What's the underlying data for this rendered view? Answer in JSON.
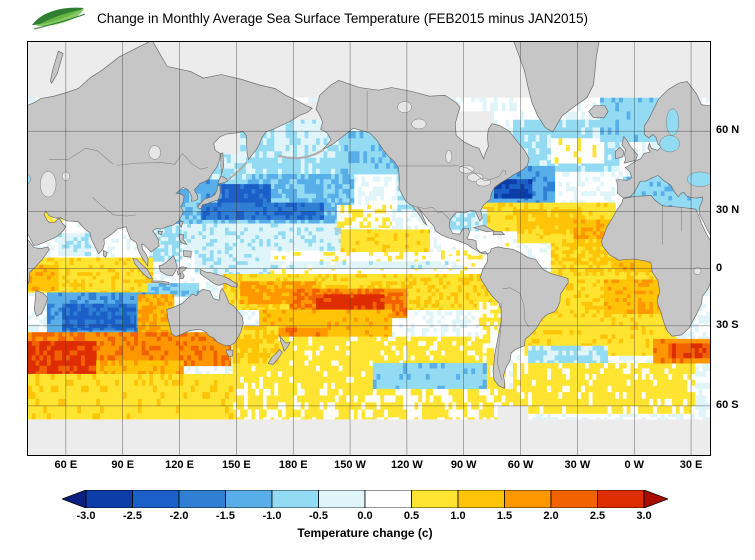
{
  "header": {
    "title": "Change in Monthly Average Sea Surface Temperature (FEB2015 minus JAN2015)",
    "logo_name": "green-leaf-logo"
  },
  "axes": {
    "lon": [
      {
        "v": 60,
        "label": "60 E"
      },
      {
        "v": 90,
        "label": "90 E"
      },
      {
        "v": 120,
        "label": "120 E"
      },
      {
        "v": 150,
        "label": "150 E"
      },
      {
        "v": 180,
        "label": "180 E"
      },
      {
        "v": 210,
        "label": "150 W"
      },
      {
        "v": 240,
        "label": "120 W"
      },
      {
        "v": 270,
        "label": "90 W"
      },
      {
        "v": 300,
        "label": "60 W"
      },
      {
        "v": 330,
        "label": "30 W"
      },
      {
        "v": 360,
        "label": "0 W"
      },
      {
        "v": 390,
        "label": "30 E"
      }
    ],
    "lat": [
      {
        "v": 60,
        "label": "60 N"
      },
      {
        "v": 30,
        "label": "30 N"
      },
      {
        "v": 0,
        "label": "0"
      },
      {
        "v": -30,
        "label": "30 S"
      },
      {
        "v": -60,
        "label": "60 S"
      }
    ]
  },
  "colorbar": {
    "tick_labels": [
      "-3.0",
      "-2.5",
      "-2.0",
      "-1.5",
      "-1.0",
      "-0.5",
      "0.0",
      "0.5",
      "1.0",
      "1.5",
      "2.0",
      "2.5",
      "3.0"
    ],
    "caption": "Temperature change (c)"
  },
  "chart_data": {
    "type": "heatmap",
    "title": "Change in Monthly Average Sea Surface Temperature (FEB2015 minus JAN2015)",
    "units": "c",
    "projection": "mercator",
    "lon_range": [
      40,
      400
    ],
    "lat_range": [
      -71,
      77
    ],
    "grid_lons": [
      60,
      90,
      120,
      150,
      180,
      210,
      240,
      270,
      300,
      330,
      360,
      390
    ],
    "grid_lats": [
      60,
      30,
      0,
      -30,
      -60
    ],
    "grid": true,
    "legend_position": "bottom",
    "land_color": "#c6c6c6",
    "nodata_color": "#ececec",
    "lake_color": "#e6e6e6",
    "palette": {
      "levels": [
        -3,
        -2.5,
        -2,
        -1.5,
        -1,
        -0.5,
        0,
        0.5,
        1,
        1.5,
        2,
        2.5,
        3
      ],
      "colors": [
        "#0a1f7e",
        "#0d3da8",
        "#1b5fc8",
        "#2f7fd4",
        "#58aee8",
        "#93dbf3",
        "#dff5fa",
        "#ffffff",
        "#ffe431",
        "#ffc408",
        "#ff9700",
        "#f26200",
        "#de2d00",
        "#a90d00"
      ]
    },
    "regions": [
      [
        77,
        -71,
        40,
        400,
        0.05
      ],
      [
        62,
        45,
        140,
        210,
        -0.7
      ],
      [
        60,
        46,
        205,
        238,
        -0.9
      ],
      [
        47,
        30,
        235,
        248,
        -0.55
      ],
      [
        46,
        22,
        124,
        212,
        -1.1
      ],
      [
        42,
        32,
        140,
        168,
        -2.2
      ],
      [
        34,
        26,
        126,
        196,
        -1.9
      ],
      [
        24,
        10,
        122,
        205,
        -0.35
      ],
      [
        21,
        9,
        205,
        252,
        0.8
      ],
      [
        33,
        22,
        203,
        232,
        0.45
      ],
      [
        10,
        -3,
        128,
        168,
        -0.35
      ],
      [
        9,
        -4,
        168,
        285,
        0.3
      ],
      [
        4,
        0,
        168,
        270,
        -0.25
      ],
      [
        52,
        36,
        128,
        142,
        -1.3
      ],
      [
        40,
        24,
        117,
        131,
        -1.0
      ],
      [
        23,
        4,
        104,
        121,
        -0.6
      ],
      [
        58,
        44,
        135,
        158,
        -0.5
      ],
      [
        64,
        52,
        160,
        202,
        -0.4
      ],
      [
        -3,
        -22,
        143,
        292,
        0.9
      ],
      [
        -7,
        -19,
        152,
        192,
        1.6
      ],
      [
        -11,
        -26,
        178,
        240,
        2.0
      ],
      [
        -14,
        -23,
        192,
        228,
        2.7
      ],
      [
        -22,
        -36,
        162,
        232,
        1.3
      ],
      [
        -31,
        -45,
        170,
        198,
        1.8
      ],
      [
        -35,
        -55,
        148,
        292,
        0.7
      ],
      [
        -30,
        -46,
        148,
        172,
        1.1
      ],
      [
        -46,
        -61,
        222,
        282,
        -0.8
      ],
      [
        -55,
        -66,
        148,
        300,
        0.55
      ],
      [
        -18,
        -42,
        278,
        292,
        0.45
      ],
      [
        26,
        4,
        42,
        102,
        0.15
      ],
      [
        19,
        7,
        56,
        73,
        -0.45
      ],
      [
        6,
        -13,
        40,
        106,
        0.85
      ],
      [
        2,
        -12,
        40,
        56,
        1.4
      ],
      [
        -8,
        -15,
        103,
        130,
        -0.9
      ],
      [
        -13,
        -35,
        50,
        107,
        -1.4
      ],
      [
        -19,
        -32,
        58,
        97,
        -2.1
      ],
      [
        -14,
        -35,
        98,
        117,
        1.5
      ],
      [
        -33,
        -47,
        40,
        147,
        1.9
      ],
      [
        -37,
        -51,
        40,
        76,
        2.6
      ],
      [
        -45,
        -53,
        76,
        122,
        1.4
      ],
      [
        -50,
        -64,
        40,
        148,
        0.8
      ],
      [
        63,
        47,
        296,
        352,
        -0.7
      ],
      [
        58,
        50,
        316,
        344,
        0.35
      ],
      [
        71,
        57,
        342,
        374,
        -0.8
      ],
      [
        49,
        32,
        280,
        318,
        -1.3
      ],
      [
        44,
        36,
        286,
        306,
        -2.6
      ],
      [
        34,
        14,
        280,
        350,
        0.8
      ],
      [
        31,
        19,
        298,
        332,
        1.2
      ],
      [
        26,
        7,
        328,
        353,
        1.5
      ],
      [
        16,
        -3,
        316,
        371,
        1.0
      ],
      [
        9,
        -6,
        350,
        373,
        1.3
      ],
      [
        -2,
        -27,
        308,
        380,
        0.9
      ],
      [
        -6,
        -24,
        344,
        380,
        1.4
      ],
      [
        -26,
        -43,
        302,
        382,
        0.8
      ],
      [
        -39,
        -53,
        304,
        346,
        -0.55
      ],
      [
        -46,
        -62,
        296,
        392,
        0.7
      ],
      [
        -36,
        -46,
        370,
        400,
        1.8
      ],
      [
        -38,
        -44,
        378,
        400,
        2.4
      ],
      [
        31,
        17,
        262,
        282,
        -0.5
      ],
      [
        20,
        8,
        258,
        298,
        0.25
      ],
      [
        45,
        30,
        354,
        397,
        -0.8
      ],
      [
        30,
        12,
        391,
        400,
        0.3
      ],
      [
        30,
        23,
        47,
        58,
        0.5
      ]
    ],
    "nodata_regions": [
      [
        77,
        68,
        40,
        400
      ],
      [
        67,
        63,
        163,
        200
      ],
      [
        65,
        50,
        264,
        285
      ],
      [
        60,
        53,
        135,
        152
      ],
      [
        -63.5,
        -71,
        40,
        400
      ],
      [
        -60,
        -71,
        288,
        304
      ]
    ]
  }
}
